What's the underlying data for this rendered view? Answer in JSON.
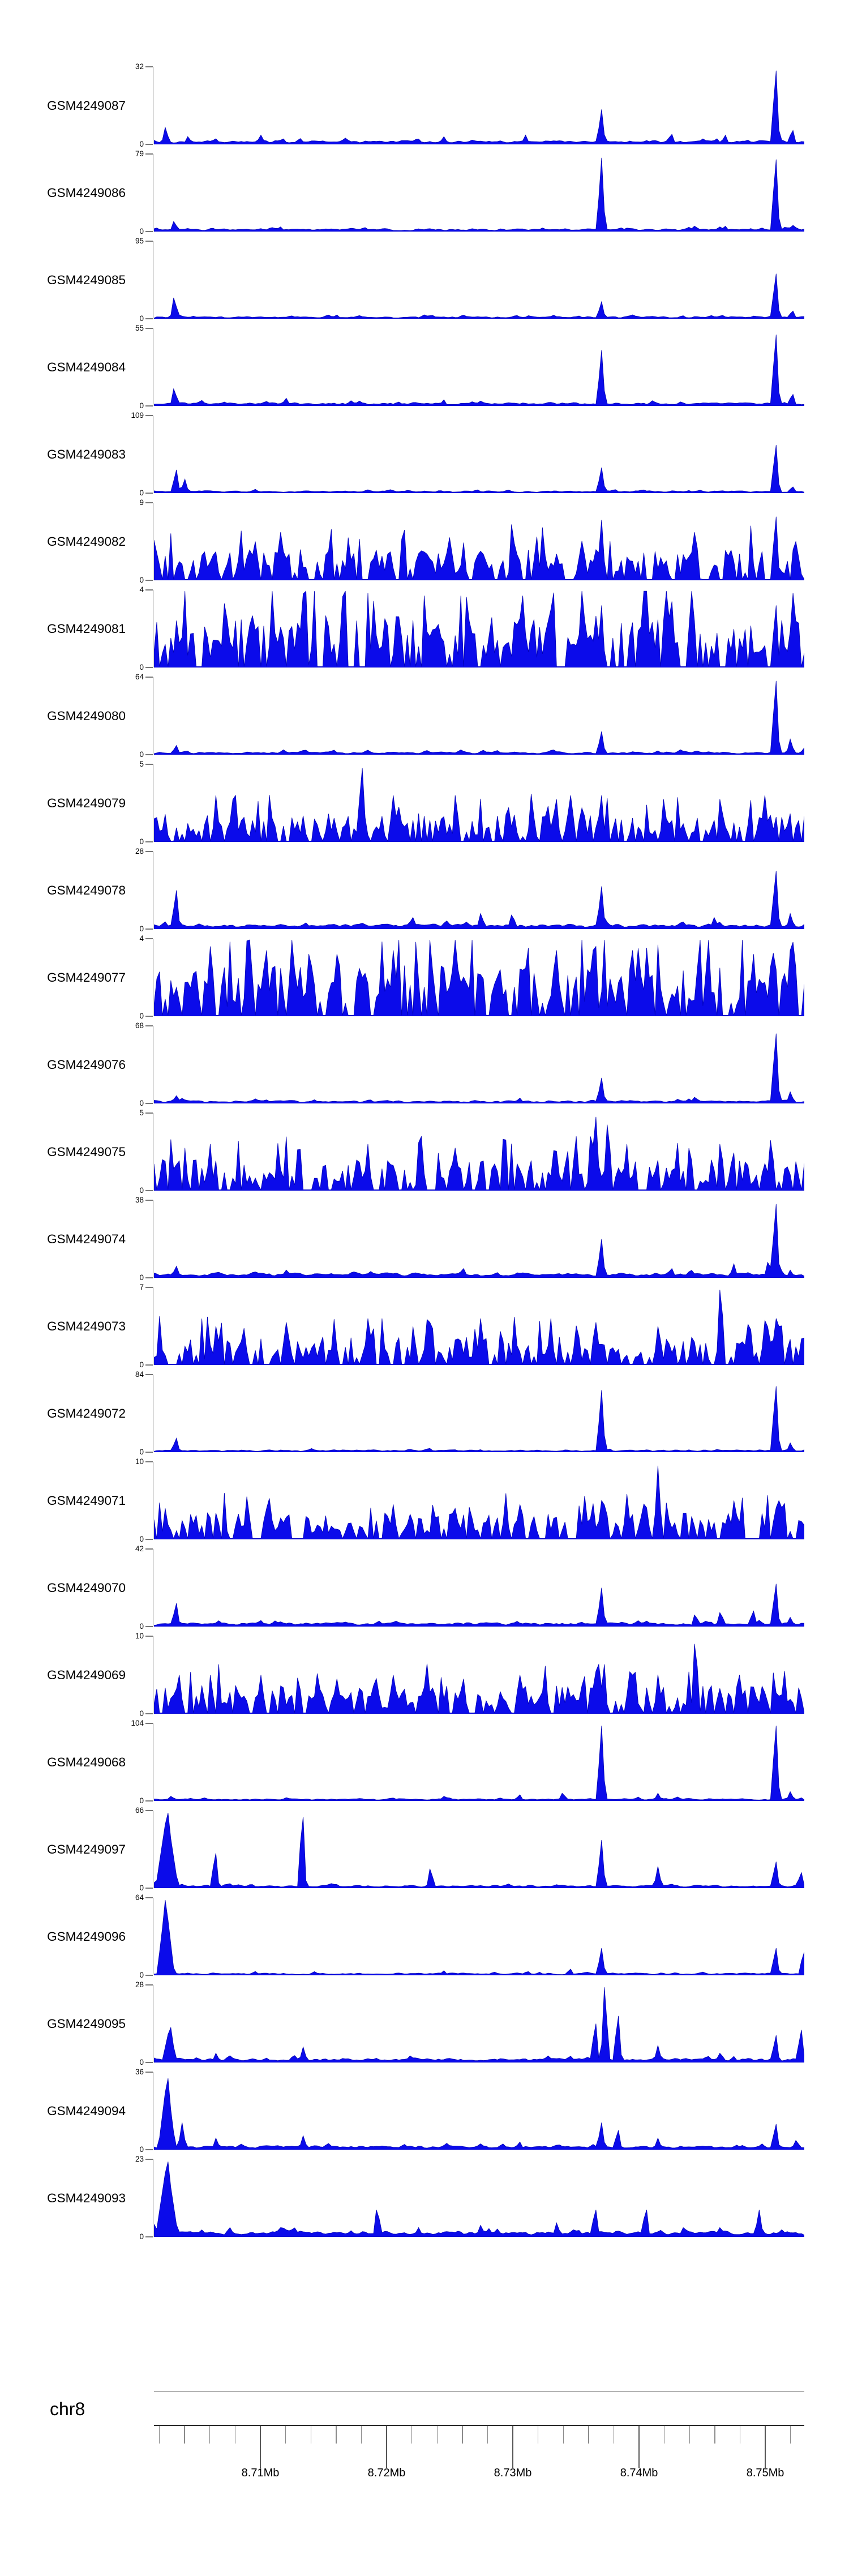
{
  "style": {
    "background": "#ffffff",
    "signal_fill": "#0b0bea",
    "signal_edge": "#0000b4",
    "axis_gray": "#777777",
    "ruler_light_line": "#8a8a8a",
    "ruler_dark_line": "#2a2a2a",
    "text_color": "#000000"
  },
  "chart_data": {
    "type": "area",
    "title": "",
    "description": "Stacked genome-browser coverage tracks (signal histograms) for 25 GEO samples over chr8:8.7016-8.7531 Mb",
    "zero_label": "0",
    "chromosome_axis": {
      "chrom": "chr8",
      "range_mb": [
        8.70157,
        8.75309
      ],
      "minor_tick_start_mb": 8.702,
      "minor_tick_end_mb": 8.752,
      "minor_tick_step_mb": 0.002,
      "major_ticks": [
        {
          "mb": 8.71,
          "label": "8.71Mb"
        },
        {
          "mb": 8.72,
          "label": "8.72Mb"
        },
        {
          "mb": 8.73,
          "label": "8.73Mb"
        },
        {
          "mb": 8.74,
          "label": "8.74Mb"
        },
        {
          "mb": 8.75,
          "label": "8.75Mb"
        }
      ]
    },
    "tracks": [
      {
        "label": "GSM4249087",
        "ymax": 32,
        "texture": "sparse",
        "baseline_level": 0.04,
        "texture_amp": 0,
        "seed": 11,
        "peaks": [
          [
            8.7025,
            0.22
          ],
          [
            8.7043,
            0.1
          ],
          [
            8.71,
            0.12
          ],
          [
            8.7245,
            0.1
          ],
          [
            8.731,
            0.12
          ],
          [
            8.737,
            0.45
          ],
          [
            8.7425,
            0.13
          ],
          [
            8.7468,
            0.12
          ],
          [
            8.7508,
            0.95
          ],
          [
            8.7521,
            0.18
          ]
        ]
      },
      {
        "label": "GSM4249086",
        "ymax": 79,
        "texture": "sparse",
        "baseline_level": 0.03,
        "texture_amp": 0,
        "seed": 12,
        "peaks": [
          [
            8.7032,
            0.13
          ],
          [
            8.7115,
            0.06
          ],
          [
            8.737,
            0.95
          ],
          [
            8.7445,
            0.07
          ],
          [
            8.7468,
            0.07
          ],
          [
            8.7508,
            0.93
          ],
          [
            8.7523,
            0.08
          ]
        ]
      },
      {
        "label": "GSM4249085",
        "ymax": 95,
        "texture": "sparse",
        "baseline_level": 0.025,
        "texture_amp": 0,
        "seed": 13,
        "peaks": [
          [
            8.7032,
            0.27
          ],
          [
            8.716,
            0.05
          ],
          [
            8.737,
            0.22
          ],
          [
            8.7508,
            0.58
          ],
          [
            8.7521,
            0.1
          ]
        ]
      },
      {
        "label": "GSM4249084",
        "ymax": 55,
        "texture": "sparse",
        "baseline_level": 0.035,
        "texture_amp": 0,
        "seed": 14,
        "peaks": [
          [
            8.7032,
            0.22
          ],
          [
            8.712,
            0.1
          ],
          [
            8.7245,
            0.08
          ],
          [
            8.737,
            0.72
          ],
          [
            8.7508,
            0.92
          ],
          [
            8.7521,
            0.15
          ]
        ]
      },
      {
        "label": "GSM4249083",
        "ymax": 109,
        "texture": "sparse",
        "baseline_level": 0.025,
        "texture_amp": 0,
        "seed": 15,
        "peaks": [
          [
            8.7033,
            0.3
          ],
          [
            8.704,
            0.18
          ],
          [
            8.7095,
            0.05
          ],
          [
            8.737,
            0.33
          ],
          [
            8.7508,
            0.62
          ],
          [
            8.7521,
            0.08
          ]
        ]
      },
      {
        "label": "GSM4249082",
        "ymax": 9,
        "texture": "dense",
        "baseline_level": 0.02,
        "texture_amp": 0.33,
        "seed": 16,
        "peaks": [
          [
            8.7095,
            0.5
          ],
          [
            8.717,
            0.55
          ],
          [
            8.73,
            0.72
          ],
          [
            8.737,
            0.78
          ],
          [
            8.7445,
            0.62
          ],
          [
            8.7508,
            0.82
          ],
          [
            8.7525,
            0.5
          ]
        ]
      },
      {
        "label": "GSM4249081",
        "ymax": 4,
        "texture": "dense",
        "baseline_level": 0.02,
        "texture_amp": 0.55,
        "seed": 17,
        "peaks": [
          [
            8.7135,
            0.95
          ],
          [
            8.733,
            0.75
          ],
          [
            8.737,
            0.8
          ],
          [
            8.7425,
            0.85
          ],
          [
            8.7508,
            0.8
          ]
        ]
      },
      {
        "label": "GSM4249080",
        "ymax": 64,
        "texture": "sparse",
        "baseline_level": 0.03,
        "texture_amp": 0,
        "seed": 18,
        "peaks": [
          [
            8.7033,
            0.12
          ],
          [
            8.737,
            0.3
          ],
          [
            8.7508,
            0.95
          ],
          [
            8.752,
            0.2
          ]
        ]
      },
      {
        "label": "GSM4249079",
        "ymax": 5,
        "texture": "dense",
        "baseline_level": 0.02,
        "texture_amp": 0.3,
        "seed": 19,
        "peaks": [
          [
            8.7065,
            0.6
          ],
          [
            8.708,
            0.6
          ],
          [
            8.718,
            0.95
          ],
          [
            8.7205,
            0.6
          ],
          [
            8.7255,
            0.6
          ],
          [
            8.7315,
            0.62
          ],
          [
            8.7345,
            0.6
          ],
          [
            8.737,
            0.6
          ],
          [
            8.742,
            0.55
          ],
          [
            8.7465,
            0.55
          ],
          [
            8.75,
            0.6
          ]
        ]
      },
      {
        "label": "GSM4249078",
        "ymax": 28,
        "texture": "mid",
        "baseline_level": 0.05,
        "texture_amp": 0,
        "seed": 20,
        "peaks": [
          [
            8.7033,
            0.5
          ],
          [
            8.722,
            0.15
          ],
          [
            8.7275,
            0.2
          ],
          [
            8.73,
            0.18
          ],
          [
            8.737,
            0.55
          ],
          [
            8.746,
            0.15
          ],
          [
            8.7508,
            0.75
          ],
          [
            8.752,
            0.2
          ]
        ]
      },
      {
        "label": "GSM4249077",
        "ymax": 4,
        "texture": "dense",
        "baseline_level": 0.02,
        "texture_amp": 0.55,
        "seed": 21,
        "peaks": [
          [
            8.706,
            0.9
          ],
          [
            8.7105,
            0.85
          ],
          [
            8.716,
            0.8
          ],
          [
            8.7205,
            0.85
          ],
          [
            8.7255,
            0.8
          ],
          [
            8.7335,
            0.85
          ],
          [
            8.7365,
            0.9
          ],
          [
            8.7395,
            0.85
          ],
          [
            8.7455,
            0.85
          ],
          [
            8.749,
            0.8
          ],
          [
            8.752,
            0.85
          ]
        ]
      },
      {
        "label": "GSM4249076",
        "ymax": 68,
        "texture": "sparse",
        "baseline_level": 0.03,
        "texture_amp": 0,
        "seed": 22,
        "peaks": [
          [
            8.7033,
            0.1
          ],
          [
            8.7095,
            0.06
          ],
          [
            8.7305,
            0.07
          ],
          [
            8.737,
            0.33
          ],
          [
            8.7445,
            0.08
          ],
          [
            8.7508,
            0.9
          ],
          [
            8.752,
            0.15
          ]
        ]
      },
      {
        "label": "GSM4249075",
        "ymax": 5,
        "texture": "dense",
        "baseline_level": 0.02,
        "texture_amp": 0.33,
        "seed": 23,
        "peaks": [
          [
            8.706,
            0.6
          ],
          [
            8.7185,
            0.6
          ],
          [
            8.7255,
            0.55
          ],
          [
            8.735,
            0.7
          ],
          [
            8.7365,
            0.95
          ],
          [
            8.7375,
            0.85
          ],
          [
            8.739,
            0.6
          ],
          [
            8.743,
            0.55
          ],
          [
            8.7465,
            0.6
          ],
          [
            8.7505,
            0.65
          ]
        ]
      },
      {
        "label": "GSM4249074",
        "ymax": 38,
        "texture": "mid",
        "baseline_level": 0.05,
        "texture_amp": 0,
        "seed": 24,
        "peaks": [
          [
            8.7033,
            0.15
          ],
          [
            8.712,
            0.1
          ],
          [
            8.726,
            0.12
          ],
          [
            8.737,
            0.5
          ],
          [
            8.7425,
            0.12
          ],
          [
            8.7475,
            0.18
          ],
          [
            8.7503,
            0.2
          ],
          [
            8.7508,
            0.95
          ],
          [
            8.752,
            0.1
          ]
        ]
      },
      {
        "label": "GSM4249073",
        "ymax": 7,
        "texture": "dense",
        "baseline_level": 0.02,
        "texture_amp": 0.3,
        "seed": 25,
        "peaks": [
          [
            8.7065,
            0.5
          ],
          [
            8.712,
            0.55
          ],
          [
            8.7185,
            0.6
          ],
          [
            8.7235,
            0.55
          ],
          [
            8.7275,
            0.6
          ],
          [
            8.733,
            0.6
          ],
          [
            8.7365,
            0.55
          ],
          [
            8.7415,
            0.5
          ],
          [
            8.7465,
            0.97
          ],
          [
            8.7508,
            0.6
          ]
        ]
      },
      {
        "label": "GSM4249072",
        "ymax": 84,
        "texture": "sparse",
        "baseline_level": 0.025,
        "texture_amp": 0,
        "seed": 26,
        "peaks": [
          [
            8.7033,
            0.18
          ],
          [
            8.737,
            0.8
          ],
          [
            8.7508,
            0.85
          ],
          [
            8.752,
            0.12
          ]
        ]
      },
      {
        "label": "GSM4249071",
        "ymax": 10,
        "texture": "dense",
        "baseline_level": 0.02,
        "texture_amp": 0.28,
        "seed": 27,
        "peaks": [
          [
            8.7025,
            0.4
          ],
          [
            8.7105,
            0.4
          ],
          [
            8.7205,
            0.45
          ],
          [
            8.7255,
            0.4
          ],
          [
            8.7305,
            0.45
          ],
          [
            8.737,
            0.5
          ],
          [
            8.7415,
            0.95
          ],
          [
            8.7475,
            0.5
          ],
          [
            8.751,
            0.5
          ]
        ]
      },
      {
        "label": "GSM4249070",
        "ymax": 42,
        "texture": "mid",
        "baseline_level": 0.04,
        "texture_amp": 0,
        "seed": 28,
        "peaks": [
          [
            8.7033,
            0.3
          ],
          [
            8.737,
            0.5
          ],
          [
            8.7445,
            0.15
          ],
          [
            8.7465,
            0.18
          ],
          [
            8.749,
            0.2
          ],
          [
            8.7508,
            0.55
          ],
          [
            8.752,
            0.12
          ]
        ]
      },
      {
        "label": "GSM4249069",
        "ymax": 10,
        "texture": "dense",
        "baseline_level": 0.02,
        "texture_amp": 0.3,
        "seed": 29,
        "peaks": [
          [
            8.7035,
            0.5
          ],
          [
            8.71,
            0.5
          ],
          [
            8.716,
            0.45
          ],
          [
            8.7205,
            0.5
          ],
          [
            8.726,
            0.45
          ],
          [
            8.7305,
            0.5
          ],
          [
            8.7365,
            0.55
          ],
          [
            8.7395,
            0.5
          ],
          [
            8.7445,
            0.9
          ],
          [
            8.748,
            0.5
          ],
          [
            8.7515,
            0.55
          ]
        ]
      },
      {
        "label": "GSM4249068",
        "ymax": 104,
        "texture": "sparse",
        "baseline_level": 0.025,
        "texture_amp": 0,
        "seed": 30,
        "peaks": [
          [
            8.703,
            0.06
          ],
          [
            8.7245,
            0.06
          ],
          [
            8.7305,
            0.08
          ],
          [
            8.734,
            0.1
          ],
          [
            8.737,
            0.97
          ],
          [
            8.7415,
            0.1
          ],
          [
            8.7508,
            0.97
          ],
          [
            8.752,
            0.12
          ]
        ]
      },
      {
        "label": "GSM4249097",
        "ymax": 66,
        "texture": "sparse",
        "baseline_level": 0.03,
        "texture_amp": 0,
        "seed": 31,
        "peaks": [
          [
            8.7026,
            0.97,
            0.0009
          ],
          [
            8.7064,
            0.45
          ],
          [
            8.7133,
            0.92
          ],
          [
            8.7235,
            0.25
          ],
          [
            8.737,
            0.62
          ],
          [
            8.7415,
            0.28
          ],
          [
            8.7508,
            0.34
          ],
          [
            8.7528,
            0.2
          ]
        ]
      },
      {
        "label": "GSM4249096",
        "ymax": 64,
        "texture": "sparse",
        "baseline_level": 0.025,
        "texture_amp": 0,
        "seed": 32,
        "peaks": [
          [
            8.7025,
            0.97,
            0.0007
          ],
          [
            8.7095,
            0.05
          ],
          [
            8.7245,
            0.06
          ],
          [
            8.7345,
            0.08
          ],
          [
            8.737,
            0.35
          ],
          [
            8.7508,
            0.35
          ],
          [
            8.753,
            0.3
          ]
        ]
      },
      {
        "label": "GSM4249095",
        "ymax": 28,
        "texture": "mid",
        "baseline_level": 0.045,
        "texture_amp": 0,
        "seed": 33,
        "peaks": [
          [
            8.7028,
            0.45,
            0.0006
          ],
          [
            8.7065,
            0.12
          ],
          [
            8.7134,
            0.2
          ],
          [
            8.7365,
            0.5
          ],
          [
            8.7373,
            0.97
          ],
          [
            8.7383,
            0.6
          ],
          [
            8.7415,
            0.22
          ],
          [
            8.7465,
            0.12
          ],
          [
            8.7508,
            0.35
          ],
          [
            8.7528,
            0.42
          ]
        ]
      },
      {
        "label": "GSM4249094",
        "ymax": 36,
        "texture": "mid",
        "baseline_level": 0.04,
        "texture_amp": 0,
        "seed": 34,
        "peaks": [
          [
            8.7026,
            0.92,
            0.0007
          ],
          [
            8.7038,
            0.35
          ],
          [
            8.7065,
            0.15
          ],
          [
            8.7134,
            0.18
          ],
          [
            8.7305,
            0.1
          ],
          [
            8.737,
            0.35
          ],
          [
            8.7383,
            0.25
          ],
          [
            8.7415,
            0.15
          ],
          [
            8.7508,
            0.33
          ],
          [
            8.7525,
            0.12
          ]
        ]
      },
      {
        "label": "GSM4249093",
        "ymax": 23,
        "texture": "mid",
        "baseline_level": 0.06,
        "texture_amp": 0,
        "seed": 35,
        "peaks": [
          [
            8.7026,
            0.97,
            0.0009
          ],
          [
            8.7075,
            0.12
          ],
          [
            8.7115,
            0.12
          ],
          [
            8.7193,
            0.35
          ],
          [
            8.7225,
            0.12
          ],
          [
            8.7275,
            0.15
          ],
          [
            8.7335,
            0.18
          ],
          [
            8.7365,
            0.35
          ],
          [
            8.7405,
            0.35
          ],
          [
            8.7435,
            0.12
          ],
          [
            8.7465,
            0.12
          ],
          [
            8.7495,
            0.35
          ]
        ]
      }
    ]
  }
}
